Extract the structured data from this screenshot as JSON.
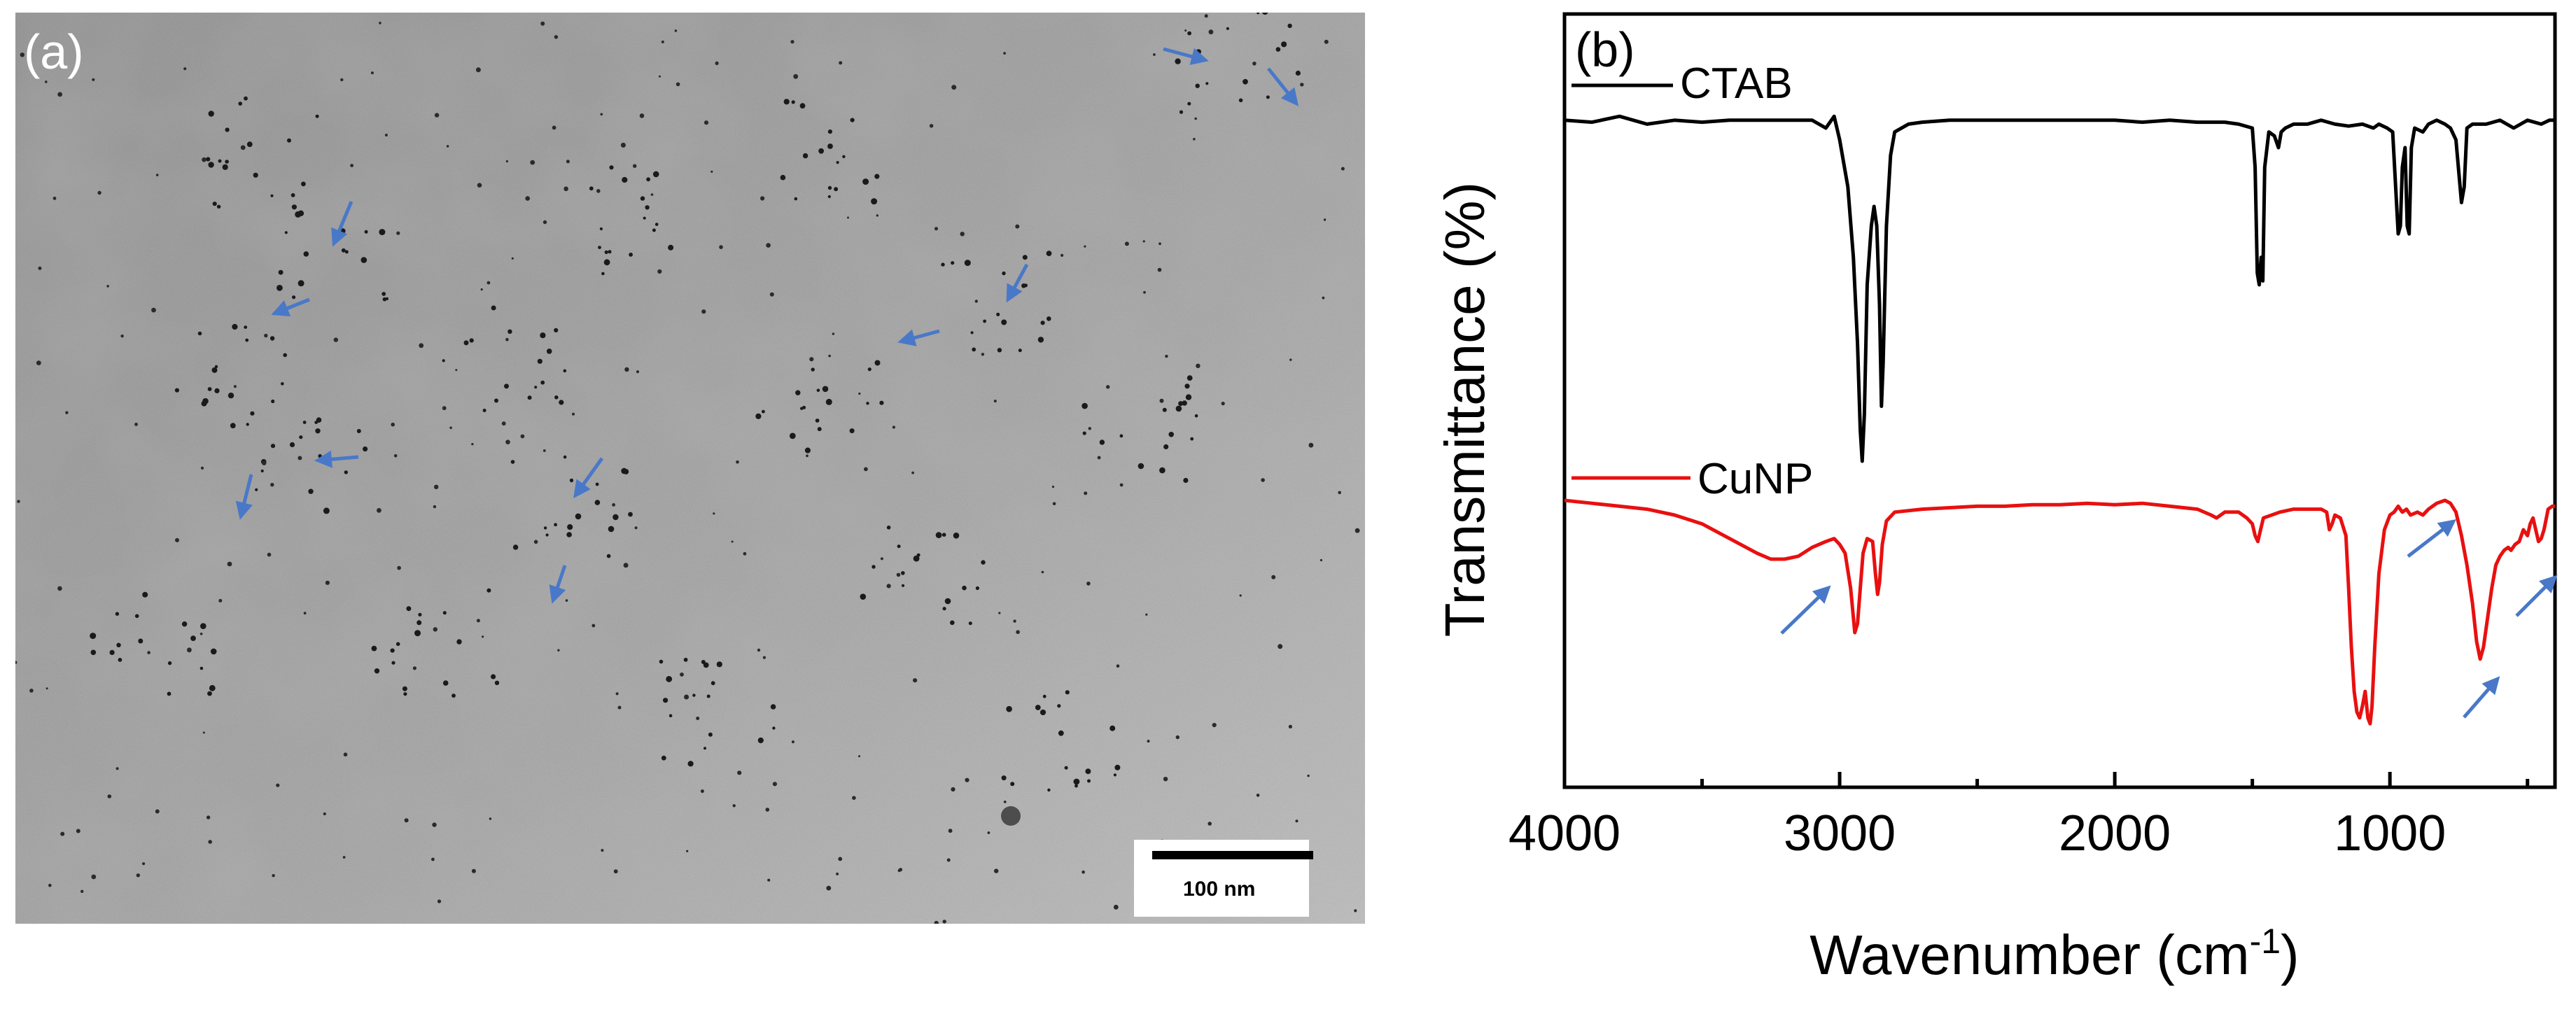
{
  "panel_a": {
    "label": "(a)",
    "scale_bar_label": "100 nm",
    "colors": {
      "arrow": "#4a78c8",
      "background": "#a8a8a8",
      "scale_bar": "#000000"
    }
  },
  "chart_data": {
    "type": "line",
    "panel_label": "(b)",
    "title": "",
    "xlabel": "Wavenumber (cm",
    "xlabel_sup": "-1",
    "xlabel_end": ")",
    "ylabel": "Transmittance  (%)",
    "xlim": [
      4000,
      400
    ],
    "x_reversed": true,
    "y_tick_labels_shown": false,
    "x_ticks": [
      4000,
      3000,
      2000,
      1000
    ],
    "x_tick_labels": [
      "4000",
      "3000",
      "2000",
      "1000"
    ],
    "legend_inline": true,
    "series": [
      {
        "name": "CTAB",
        "color": "#000000",
        "points": [
          [
            4000,
            0.03
          ],
          [
            3900,
            0.035
          ],
          [
            3800,
            0.02
          ],
          [
            3700,
            0.04
          ],
          [
            3600,
            0.03
          ],
          [
            3500,
            0.035
          ],
          [
            3400,
            0.03
          ],
          [
            3300,
            0.03
          ],
          [
            3200,
            0.03
          ],
          [
            3100,
            0.03
          ],
          [
            3050,
            0.05
          ],
          [
            3020,
            0.02
          ],
          [
            3000,
            0.08
          ],
          [
            2990,
            0.12
          ],
          [
            2970,
            0.2
          ],
          [
            2950,
            0.38
          ],
          [
            2935,
            0.6
          ],
          [
            2925,
            0.82
          ],
          [
            2918,
            0.9
          ],
          [
            2910,
            0.78
          ],
          [
            2900,
            0.45
          ],
          [
            2885,
            0.3
          ],
          [
            2875,
            0.25
          ],
          [
            2865,
            0.3
          ],
          [
            2855,
            0.5
          ],
          [
            2848,
            0.76
          ],
          [
            2842,
            0.65
          ],
          [
            2830,
            0.3
          ],
          [
            2815,
            0.12
          ],
          [
            2800,
            0.06
          ],
          [
            2750,
            0.04
          ],
          [
            2700,
            0.035
          ],
          [
            2600,
            0.03
          ],
          [
            2500,
            0.03
          ],
          [
            2400,
            0.03
          ],
          [
            2300,
            0.03
          ],
          [
            2200,
            0.03
          ],
          [
            2100,
            0.03
          ],
          [
            2000,
            0.03
          ],
          [
            1900,
            0.035
          ],
          [
            1800,
            0.03
          ],
          [
            1700,
            0.035
          ],
          [
            1600,
            0.035
          ],
          [
            1550,
            0.04
          ],
          [
            1500,
            0.05
          ],
          [
            1490,
            0.15
          ],
          [
            1482,
            0.42
          ],
          [
            1475,
            0.45
          ],
          [
            1468,
            0.38
          ],
          [
            1462,
            0.44
          ],
          [
            1455,
            0.15
          ],
          [
            1440,
            0.06
          ],
          [
            1420,
            0.07
          ],
          [
            1405,
            0.1
          ],
          [
            1395,
            0.06
          ],
          [
            1380,
            0.05
          ],
          [
            1350,
            0.04
          ],
          [
            1300,
            0.04
          ],
          [
            1250,
            0.03
          ],
          [
            1200,
            0.04
          ],
          [
            1150,
            0.045
          ],
          [
            1100,
            0.04
          ],
          [
            1060,
            0.05
          ],
          [
            1040,
            0.04
          ],
          [
            1010,
            0.05
          ],
          [
            990,
            0.06
          ],
          [
            970,
            0.32
          ],
          [
            962,
            0.3
          ],
          [
            955,
            0.15
          ],
          [
            945,
            0.1
          ],
          [
            937,
            0.3
          ],
          [
            930,
            0.32
          ],
          [
            922,
            0.1
          ],
          [
            910,
            0.05
          ],
          [
            880,
            0.06
          ],
          [
            860,
            0.04
          ],
          [
            830,
            0.03
          ],
          [
            800,
            0.04
          ],
          [
            780,
            0.05
          ],
          [
            760,
            0.08
          ],
          [
            740,
            0.24
          ],
          [
            730,
            0.2
          ],
          [
            720,
            0.05
          ],
          [
            700,
            0.04
          ],
          [
            650,
            0.04
          ],
          [
            600,
            0.03
          ],
          [
            550,
            0.05
          ],
          [
            500,
            0.03
          ],
          [
            450,
            0.04
          ],
          [
            420,
            0.03
          ],
          [
            400,
            0.03
          ]
        ]
      },
      {
        "name": "CuNP",
        "color": "#e81010",
        "points": [
          [
            4000,
            0.0
          ],
          [
            3900,
            0.01
          ],
          [
            3800,
            0.02
          ],
          [
            3700,
            0.03
          ],
          [
            3600,
            0.05
          ],
          [
            3500,
            0.08
          ],
          [
            3400,
            0.13
          ],
          [
            3300,
            0.18
          ],
          [
            3250,
            0.2
          ],
          [
            3200,
            0.2
          ],
          [
            3150,
            0.19
          ],
          [
            3100,
            0.16
          ],
          [
            3050,
            0.14
          ],
          [
            3020,
            0.13
          ],
          [
            3000,
            0.15
          ],
          [
            2980,
            0.18
          ],
          [
            2960,
            0.3
          ],
          [
            2945,
            0.45
          ],
          [
            2935,
            0.42
          ],
          [
            2925,
            0.3
          ],
          [
            2915,
            0.18
          ],
          [
            2900,
            0.13
          ],
          [
            2880,
            0.14
          ],
          [
            2870,
            0.25
          ],
          [
            2862,
            0.32
          ],
          [
            2855,
            0.28
          ],
          [
            2845,
            0.15
          ],
          [
            2830,
            0.07
          ],
          [
            2800,
            0.04
          ],
          [
            2700,
            0.03
          ],
          [
            2600,
            0.025
          ],
          [
            2500,
            0.02
          ],
          [
            2400,
            0.02
          ],
          [
            2300,
            0.015
          ],
          [
            2200,
            0.015
          ],
          [
            2100,
            0.01
          ],
          [
            2000,
            0.015
          ],
          [
            1900,
            0.01
          ],
          [
            1800,
            0.02
          ],
          [
            1700,
            0.03
          ],
          [
            1650,
            0.05
          ],
          [
            1630,
            0.06
          ],
          [
            1600,
            0.04
          ],
          [
            1550,
            0.04
          ],
          [
            1520,
            0.06
          ],
          [
            1500,
            0.08
          ],
          [
            1490,
            0.12
          ],
          [
            1480,
            0.14
          ],
          [
            1470,
            0.1
          ],
          [
            1460,
            0.06
          ],
          [
            1400,
            0.04
          ],
          [
            1350,
            0.03
          ],
          [
            1300,
            0.03
          ],
          [
            1250,
            0.03
          ],
          [
            1230,
            0.04
          ],
          [
            1220,
            0.1
          ],
          [
            1210,
            0.08
          ],
          [
            1200,
            0.05
          ],
          [
            1180,
            0.06
          ],
          [
            1160,
            0.12
          ],
          [
            1150,
            0.3
          ],
          [
            1140,
            0.5
          ],
          [
            1130,
            0.65
          ],
          [
            1120,
            0.72
          ],
          [
            1110,
            0.74
          ],
          [
            1100,
            0.7
          ],
          [
            1090,
            0.65
          ],
          [
            1080,
            0.74
          ],
          [
            1072,
            0.76
          ],
          [
            1065,
            0.7
          ],
          [
            1055,
            0.5
          ],
          [
            1040,
            0.25
          ],
          [
            1020,
            0.1
          ],
          [
            1000,
            0.05
          ],
          [
            985,
            0.04
          ],
          [
            970,
            0.02
          ],
          [
            955,
            0.04
          ],
          [
            940,
            0.03
          ],
          [
            925,
            0.05
          ],
          [
            900,
            0.04
          ],
          [
            880,
            0.05
          ],
          [
            860,
            0.03
          ],
          [
            830,
            0.01
          ],
          [
            800,
            0.0
          ],
          [
            780,
            0.01
          ],
          [
            760,
            0.04
          ],
          [
            740,
            0.12
          ],
          [
            720,
            0.22
          ],
          [
            700,
            0.35
          ],
          [
            685,
            0.48
          ],
          [
            672,
            0.54
          ],
          [
            660,
            0.5
          ],
          [
            645,
            0.4
          ],
          [
            630,
            0.3
          ],
          [
            615,
            0.22
          ],
          [
            600,
            0.19
          ],
          [
            585,
            0.17
          ],
          [
            570,
            0.16
          ],
          [
            560,
            0.17
          ],
          [
            545,
            0.15
          ],
          [
            530,
            0.14
          ],
          [
            515,
            0.1
          ],
          [
            500,
            0.12
          ],
          [
            490,
            0.08
          ],
          [
            480,
            0.06
          ],
          [
            470,
            0.1
          ],
          [
            460,
            0.14
          ],
          [
            450,
            0.13
          ],
          [
            440,
            0.1
          ],
          [
            425,
            0.03
          ],
          [
            410,
            0.02
          ],
          [
            400,
            0.02
          ]
        ]
      }
    ]
  }
}
